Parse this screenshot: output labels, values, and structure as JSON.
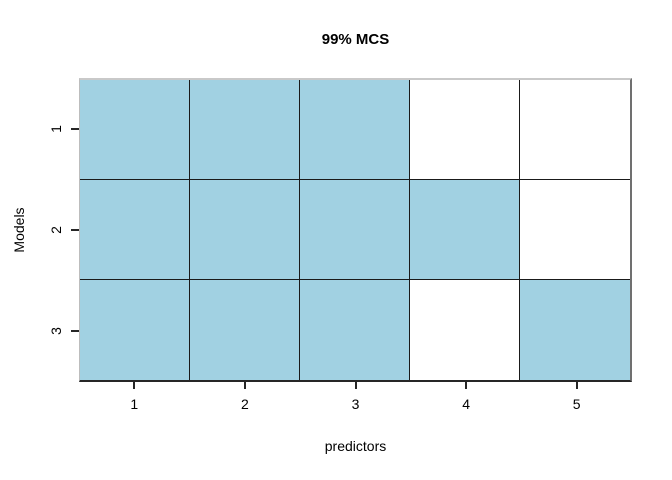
{
  "chart_data": {
    "type": "heatmap",
    "title": "99% MCS",
    "xlabel": "predictors",
    "ylabel": "Models",
    "x_ticks": [
      "1",
      "2",
      "3",
      "4",
      "5"
    ],
    "y_ticks": [
      "1",
      "2",
      "3"
    ],
    "matrix_rows_top_to_bottom": [
      {
        "model": "1",
        "included_by_predictor": [
          1,
          1,
          1,
          0,
          0
        ]
      },
      {
        "model": "2",
        "included_by_predictor": [
          1,
          1,
          1,
          1,
          0
        ]
      },
      {
        "model": "3",
        "included_by_predictor": [
          1,
          1,
          1,
          0,
          1
        ]
      }
    ],
    "x_range": [
      0.5,
      5.5
    ],
    "y_range": [
      0.5,
      3.5
    ],
    "grid": "on",
    "legend": "none",
    "colors": {
      "included_cell": "#a1d1e2",
      "excluded_cell": "#ffffff",
      "grid_line": "#1a1a1a",
      "axis_line": "#262626",
      "text": "#000000",
      "background": "#ffffff"
    }
  }
}
